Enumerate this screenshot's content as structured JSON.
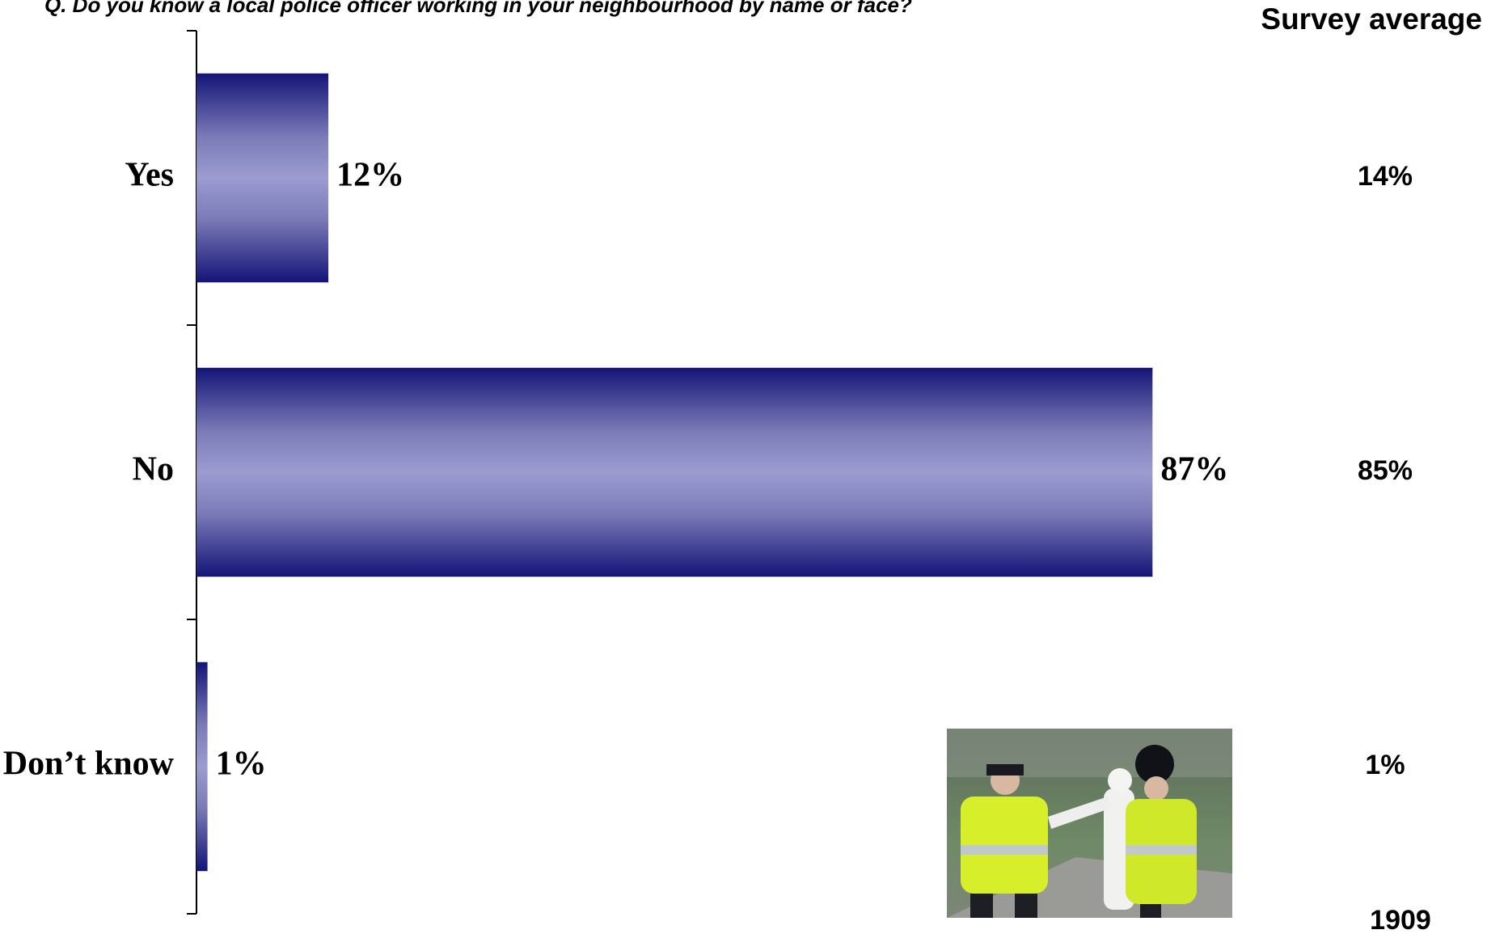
{
  "chart_data": {
    "type": "hbar",
    "title": "Q. Do you know a local police officer working in your neighbourhood by name or  face?",
    "categories": [
      "Yes",
      "No",
      "Don’t know"
    ],
    "values": [
      12,
      87,
      1
    ],
    "value_labels": [
      "12%",
      "87%",
      "1%"
    ],
    "xlim": [
      0,
      100
    ],
    "color": "#1a1a80",
    "survey_average": {
      "title": "Survey average",
      "labels": [
        "14%",
        "85%",
        "1%"
      ]
    },
    "base": 1909
  }
}
